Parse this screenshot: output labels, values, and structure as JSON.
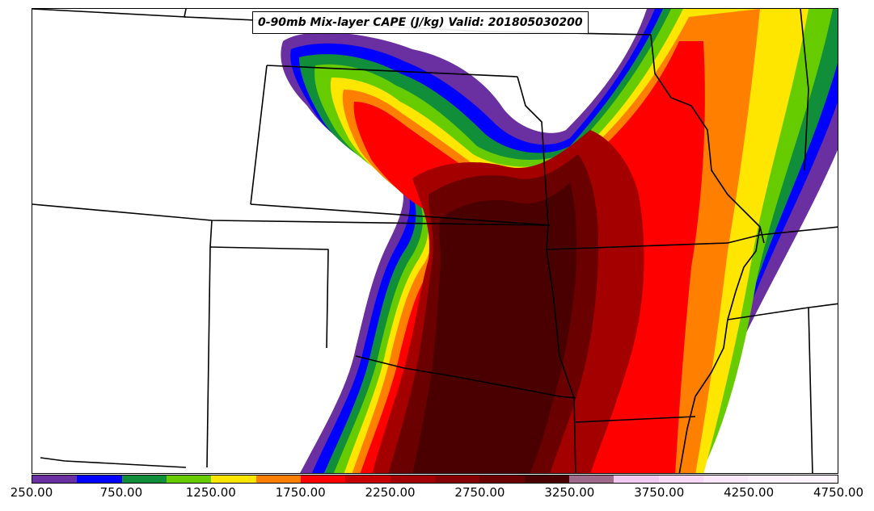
{
  "title": "0-90mb Mix-layer CAPE (J/kg) Valid: 201805030200",
  "colorbar": {
    "min": 250,
    "max": 4750,
    "step": 250,
    "colors": [
      "#6a2fa0",
      "#0000ff",
      "#118e3a",
      "#66cc00",
      "#ffe600",
      "#ff7f00",
      "#ff0000",
      "#c80000",
      "#a50000",
      "#870000",
      "#6a0000",
      "#4b0000",
      "#9e6b8a",
      "#f0c8f0",
      "#f7d8f7",
      "#fbe8fb",
      "#fdf2fd",
      "#fff6ff"
    ],
    "ticks": [
      "250.00",
      "750.00",
      "1250.00",
      "1750.00",
      "2250.00",
      "2750.00",
      "3250.00",
      "3750.00",
      "4250.00",
      "4750.00"
    ]
  },
  "map": {
    "field": "0-90mb Mix-layer CAPE",
    "units": "J/kg",
    "valid": "201805030200",
    "background": "#ffffff"
  }
}
